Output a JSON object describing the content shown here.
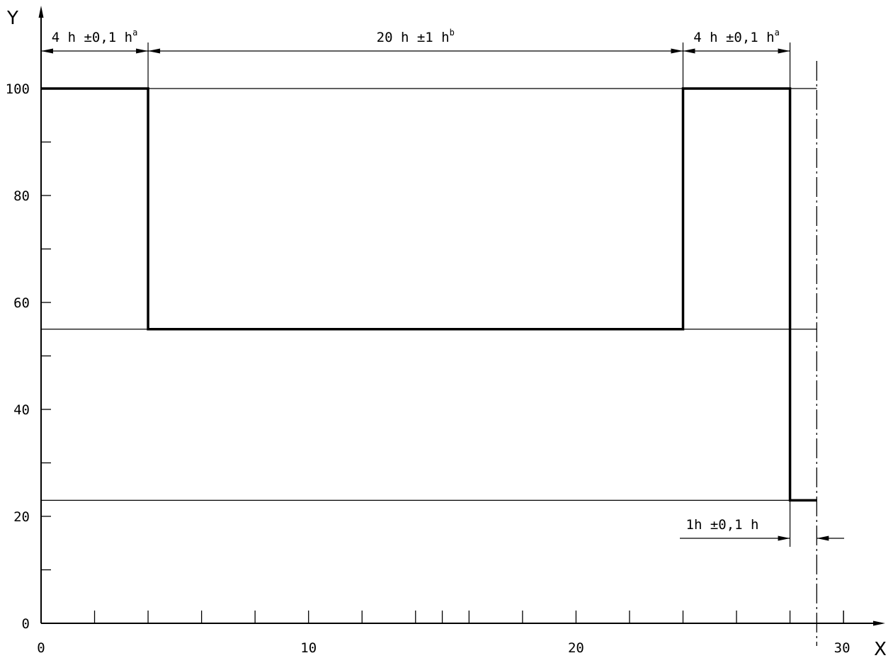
{
  "chart_data": {
    "type": "line",
    "xlabel": "X",
    "ylabel": "Y",
    "xlim": [
      0,
      30
    ],
    "ylim": [
      0,
      100
    ],
    "x_major_ticks": [
      0,
      10,
      20,
      30
    ],
    "x_minor_step": 2,
    "y_major_ticks": [
      0,
      20,
      40,
      60,
      80,
      100
    ],
    "y_minor_step": 10,
    "grid": false,
    "profile": {
      "x": [
        0,
        4,
        4,
        24,
        24,
        28,
        28,
        29
      ],
      "y": [
        100,
        100,
        55,
        55,
        100,
        100,
        23,
        23
      ]
    },
    "reference_levels": [
      100,
      55,
      23
    ],
    "centerline_x": 29,
    "dimensions": [
      {
        "from": 0,
        "to": 4,
        "label": "4 h ±0,1 h",
        "sup": "a",
        "level": "top"
      },
      {
        "from": 4,
        "to": 24,
        "label": "20 h ±1 h",
        "sup": "b",
        "level": "top"
      },
      {
        "from": 24,
        "to": 28,
        "label": "4 h ±0,1 h",
        "sup": "a",
        "level": "top"
      },
      {
        "from": 28,
        "to": 29,
        "label": "1h ±0,1 h",
        "sup": "",
        "level": "bottom"
      }
    ]
  }
}
